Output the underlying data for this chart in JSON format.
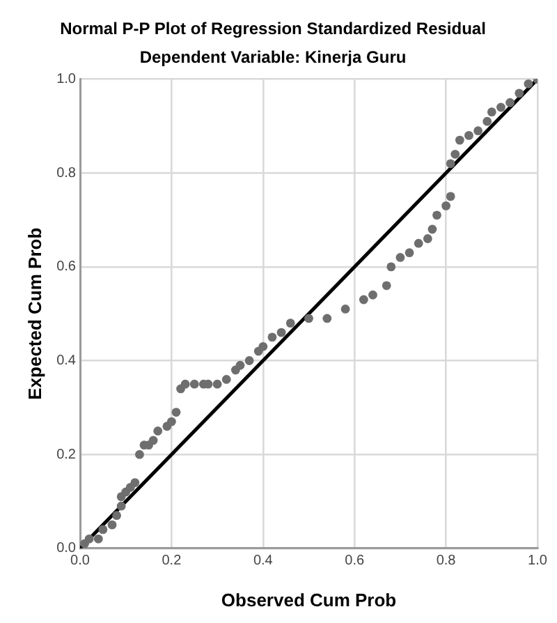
{
  "chart_data": {
    "type": "scatter",
    "title": "Normal P-P Plot of Regression Standardized Residual",
    "subtitle": "Dependent Variable: Kinerja Guru",
    "xlabel": "Observed Cum Prob",
    "ylabel": "Expected Cum Prob",
    "xlim": [
      0,
      1
    ],
    "ylim": [
      0,
      1
    ],
    "xticks": [
      {
        "value": 0,
        "label": "0.0"
      },
      {
        "value": 0.2,
        "label": "0.2"
      },
      {
        "value": 0.4,
        "label": "0.4"
      },
      {
        "value": 0.6,
        "label": "0.6"
      },
      {
        "value": 0.8,
        "label": "0.8"
      },
      {
        "value": 1,
        "label": "1.0"
      }
    ],
    "yticks": [
      {
        "value": 0,
        "label": "0.0"
      },
      {
        "value": 0.2,
        "label": "0.2"
      },
      {
        "value": 0.4,
        "label": "0.4"
      },
      {
        "value": 0.6,
        "label": "0.6"
      },
      {
        "value": 0.8,
        "label": "0.8"
      },
      {
        "value": 1,
        "label": "1.0"
      }
    ],
    "grid": true,
    "legend": false,
    "marker": "circle",
    "series": [
      {
        "color": "#6e6e6e",
        "x": [
          0.01,
          0.02,
          0.04,
          0.05,
          0.07,
          0.08,
          0.09,
          0.09,
          0.1,
          0.11,
          0.12,
          0.13,
          0.14,
          0.15,
          0.16,
          0.17,
          0.19,
          0.2,
          0.21,
          0.22,
          0.23,
          0.25,
          0.27,
          0.28,
          0.3,
          0.32,
          0.34,
          0.35,
          0.37,
          0.39,
          0.4,
          0.42,
          0.44,
          0.46,
          0.5,
          0.54,
          0.58,
          0.62,
          0.64,
          0.67,
          0.68,
          0.7,
          0.72,
          0.74,
          0.76,
          0.77,
          0.78,
          0.8,
          0.81,
          0.81,
          0.82,
          0.83,
          0.85,
          0.87,
          0.89,
          0.9,
          0.92,
          0.94,
          0.96,
          0.98,
          1.0
        ],
        "values": [
          0.01,
          0.02,
          0.02,
          0.04,
          0.05,
          0.07,
          0.09,
          0.11,
          0.12,
          0.13,
          0.14,
          0.2,
          0.22,
          0.22,
          0.23,
          0.25,
          0.26,
          0.27,
          0.29,
          0.34,
          0.35,
          0.35,
          0.35,
          0.35,
          0.35,
          0.36,
          0.38,
          0.39,
          0.4,
          0.42,
          0.43,
          0.45,
          0.46,
          0.48,
          0.49,
          0.49,
          0.51,
          0.53,
          0.54,
          0.56,
          0.6,
          0.62,
          0.63,
          0.65,
          0.66,
          0.68,
          0.71,
          0.73,
          0.75,
          0.82,
          0.84,
          0.87,
          0.88,
          0.89,
          0.91,
          0.93,
          0.94,
          0.95,
          0.97,
          0.99,
          1.0
        ]
      },
      {
        "type": "line",
        "color": "#000000",
        "marker": "none",
        "x": [
          0,
          1
        ],
        "values": [
          0,
          1
        ]
      }
    ]
  }
}
